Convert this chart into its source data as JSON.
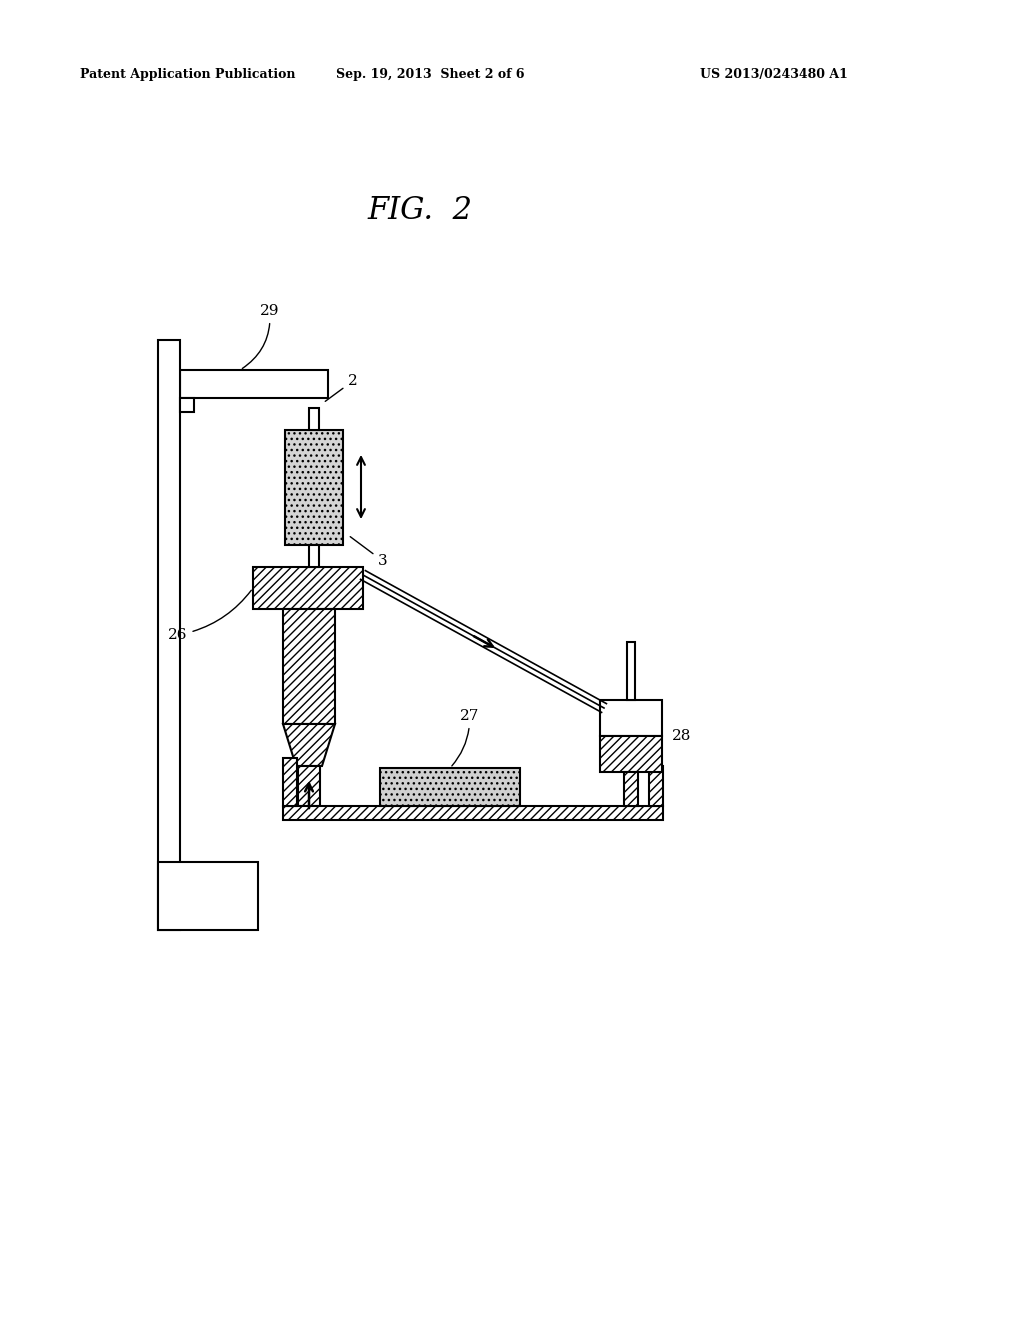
{
  "header_left": "Patent Application Publication",
  "header_center": "Sep. 19, 2013  Sheet 2 of 6",
  "header_right": "US 2013/0243480 A1",
  "bg_color": "#ffffff",
  "line_color": "#000000"
}
